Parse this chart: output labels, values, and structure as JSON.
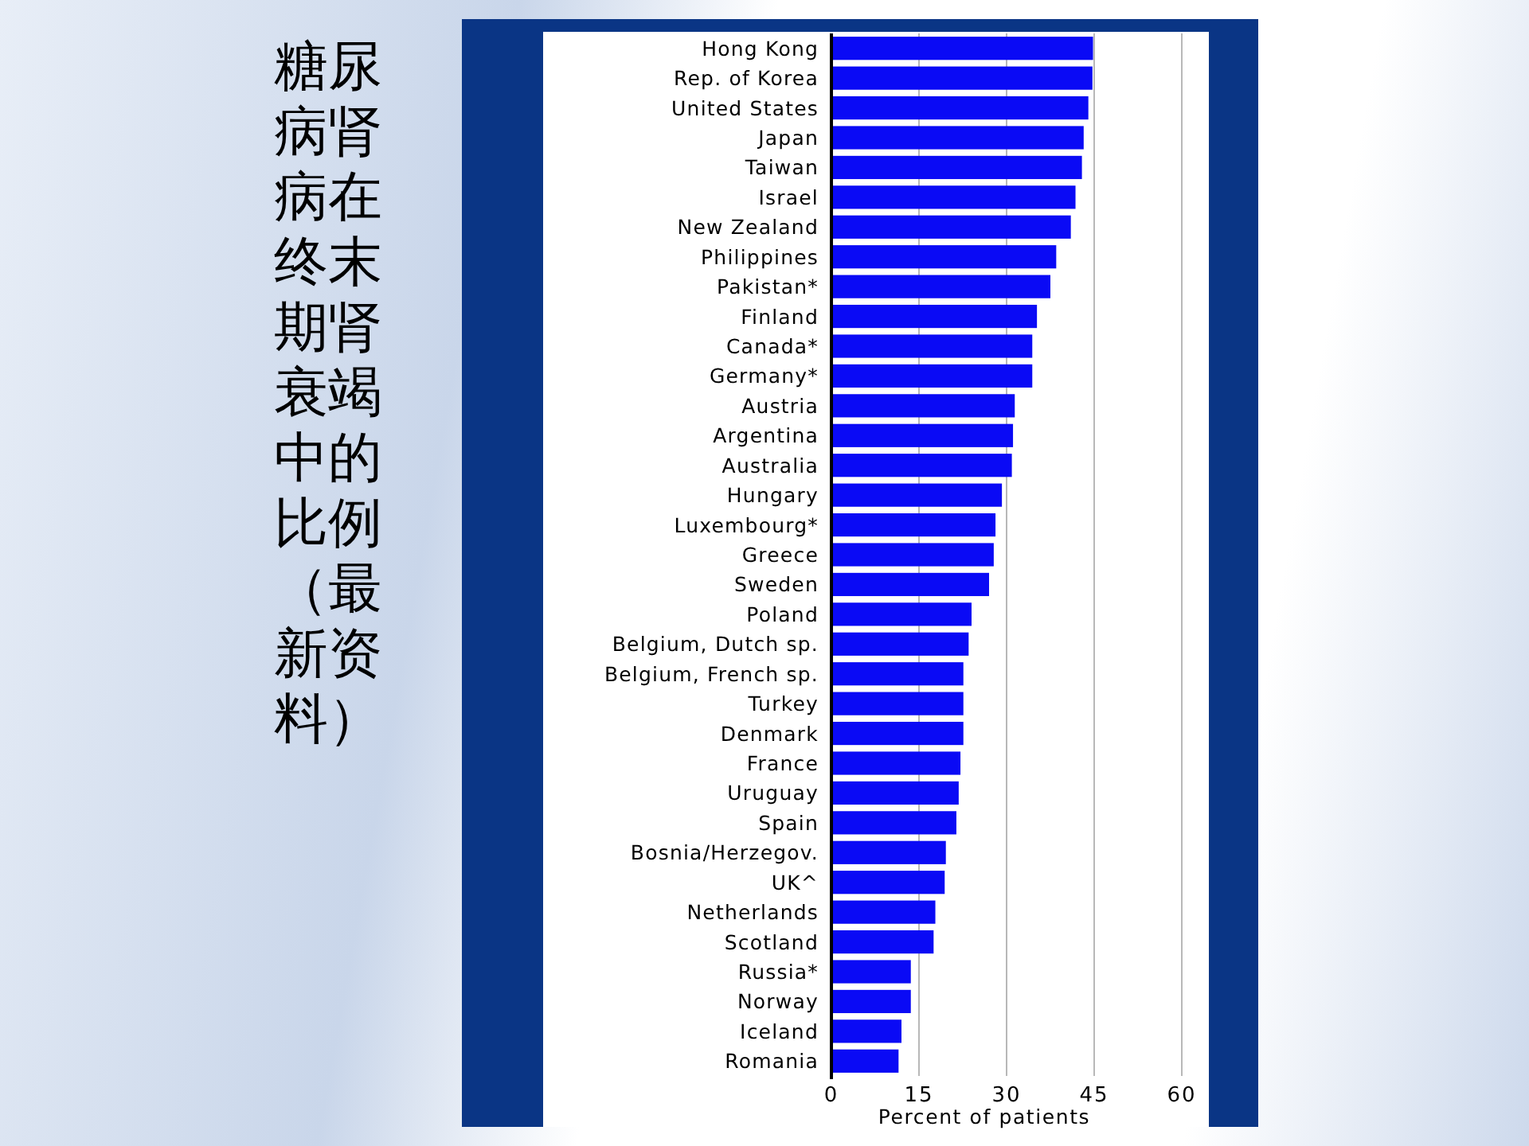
{
  "chart_data": {
    "type": "bar",
    "orientation": "horizontal",
    "title": "糖尿病肾病在终末期肾衰竭中的比例（最新资料）",
    "xlabel": "Percent of patients",
    "categories": [
      "Hong Kong",
      "Rep. of Korea",
      "United States",
      "Japan",
      "Taiwan",
      "Israel",
      "New Zealand",
      "Philippines",
      "Pakistan*",
      "Finland",
      "Canada*",
      "Germany*",
      "Austria",
      "Argentina",
      "Australia",
      "Hungary",
      "Luxembourg*",
      "Greece",
      "Sweden",
      "Poland",
      "Belgium, Dutch sp.",
      "Belgium, French sp.",
      "Turkey",
      "Denmark",
      "France",
      "Uruguay",
      "Spain",
      "Bosnia/Herzegov.",
      "UK^",
      "Netherlands",
      "Scotland",
      "Russia*",
      "Norway",
      "Iceland",
      "Romania"
    ],
    "values": [
      44.8,
      44.7,
      44.0,
      43.2,
      42.9,
      41.8,
      41.0,
      38.5,
      37.5,
      35.2,
      34.4,
      34.4,
      31.4,
      31.1,
      30.9,
      29.2,
      28.1,
      27.8,
      27.0,
      24.0,
      23.5,
      22.6,
      22.6,
      22.6,
      22.1,
      21.8,
      21.4,
      19.6,
      19.4,
      17.8,
      17.5,
      13.6,
      13.6,
      12.0,
      11.5
    ],
    "color": "#0a0af5",
    "xlim": [
      0,
      60
    ],
    "xticks": [
      0,
      15,
      30,
      45,
      60
    ],
    "grid": "x"
  }
}
